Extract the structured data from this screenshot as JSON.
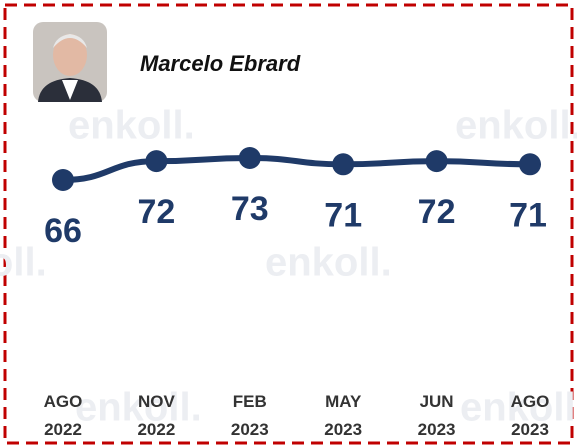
{
  "chart_data": {
    "type": "line",
    "title": "Marcelo Ebrard",
    "watermark": "enkoll.",
    "categories": [
      "AGO 2022",
      "NOV 2022",
      "FEB 2023",
      "MAY 2023",
      "JUN 2023",
      "AGO 2023"
    ],
    "values": [
      66,
      72,
      73,
      71,
      72,
      71
    ],
    "color": "#1f3a68"
  }
}
